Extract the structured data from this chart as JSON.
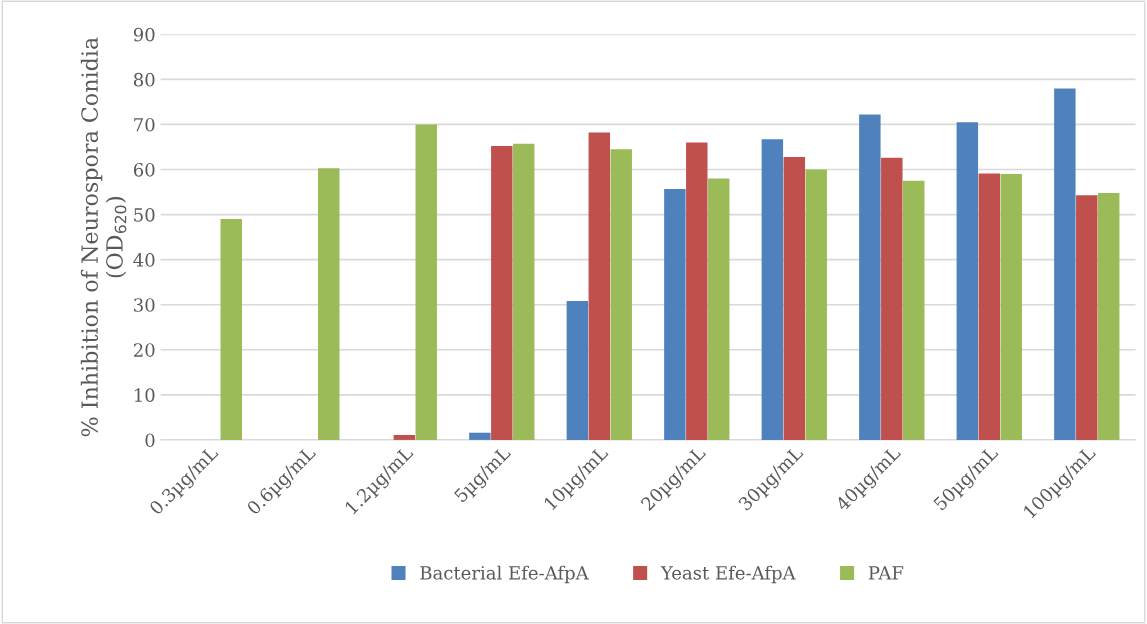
{
  "chart_data": {
    "type": "bar",
    "ylabel": "% Inhibition of Neurospora Conidia\n(OD$_{620}$)",
    "categories": [
      "0.3µg/mL",
      "0.6µg/mL",
      "1.2µg/mL",
      "5µg/mL",
      "10µg/mL",
      "20µg/mL",
      "30µg/mL",
      "40µg/mL",
      "50µg/mL",
      "100µg/mL"
    ],
    "series": [
      {
        "name": "Bacterial Efe-AfpA",
        "color": "#4f81bd",
        "values": [
          0,
          0,
          0,
          1.6,
          30.8,
          55.7,
          66.7,
          72.2,
          70.5,
          78
        ]
      },
      {
        "name": "Yeast Efe-AfpA",
        "color": "#c0504d",
        "values": [
          0,
          0,
          1.1,
          65.2,
          68.2,
          66,
          62.8,
          62.6,
          59.1,
          54.3
        ]
      },
      {
        "name": "PAF",
        "color": "#9bbb59",
        "values": [
          49,
          60.3,
          70,
          65.7,
          64.5,
          58,
          60,
          57.5,
          59,
          54.8
        ]
      }
    ],
    "ylim": [
      0,
      90
    ],
    "yticks": [
      0,
      10,
      20,
      30,
      40,
      50,
      60,
      70,
      80,
      90
    ],
    "grid": "y",
    "legend": "bottom"
  }
}
